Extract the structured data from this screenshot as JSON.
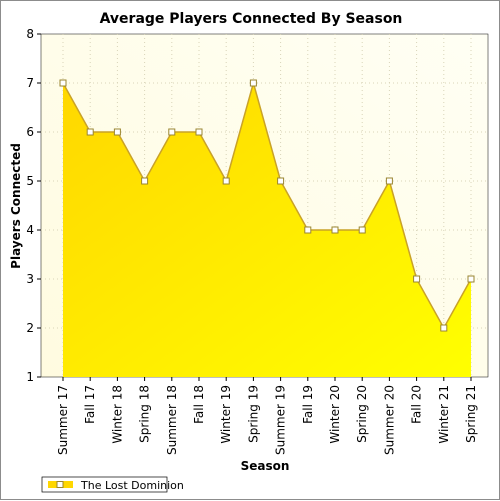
{
  "chart_data": {
    "type": "area",
    "title": "Average Players Connected By Season",
    "xlabel": "Season",
    "ylabel": "Players Connected",
    "ylim": [
      1,
      8
    ],
    "yticks": [
      1,
      2,
      3,
      4,
      5,
      6,
      7,
      8
    ],
    "grid": true,
    "legend_position": "bottom-left",
    "categories": [
      "Summer 17",
      "Fall 17",
      "Winter 18",
      "Spring 18",
      "Summer 18",
      "Fall 18",
      "Winter 19",
      "Spring 19",
      "Summer 19",
      "Fall 19",
      "Winter 20",
      "Spring 20",
      "Summer 20",
      "Fall 20",
      "Winter 21",
      "Spring 21"
    ],
    "series": [
      {
        "name": "The Lost Dominion",
        "values": [
          7,
          6,
          6,
          5,
          6,
          6,
          5,
          7,
          5,
          4,
          4,
          4,
          5,
          3,
          2,
          3
        ],
        "color_top": "#ffd700",
        "color_bottom": "#ffff00",
        "line_color": "#c9a227"
      }
    ],
    "plot_background": "#fffde6"
  }
}
